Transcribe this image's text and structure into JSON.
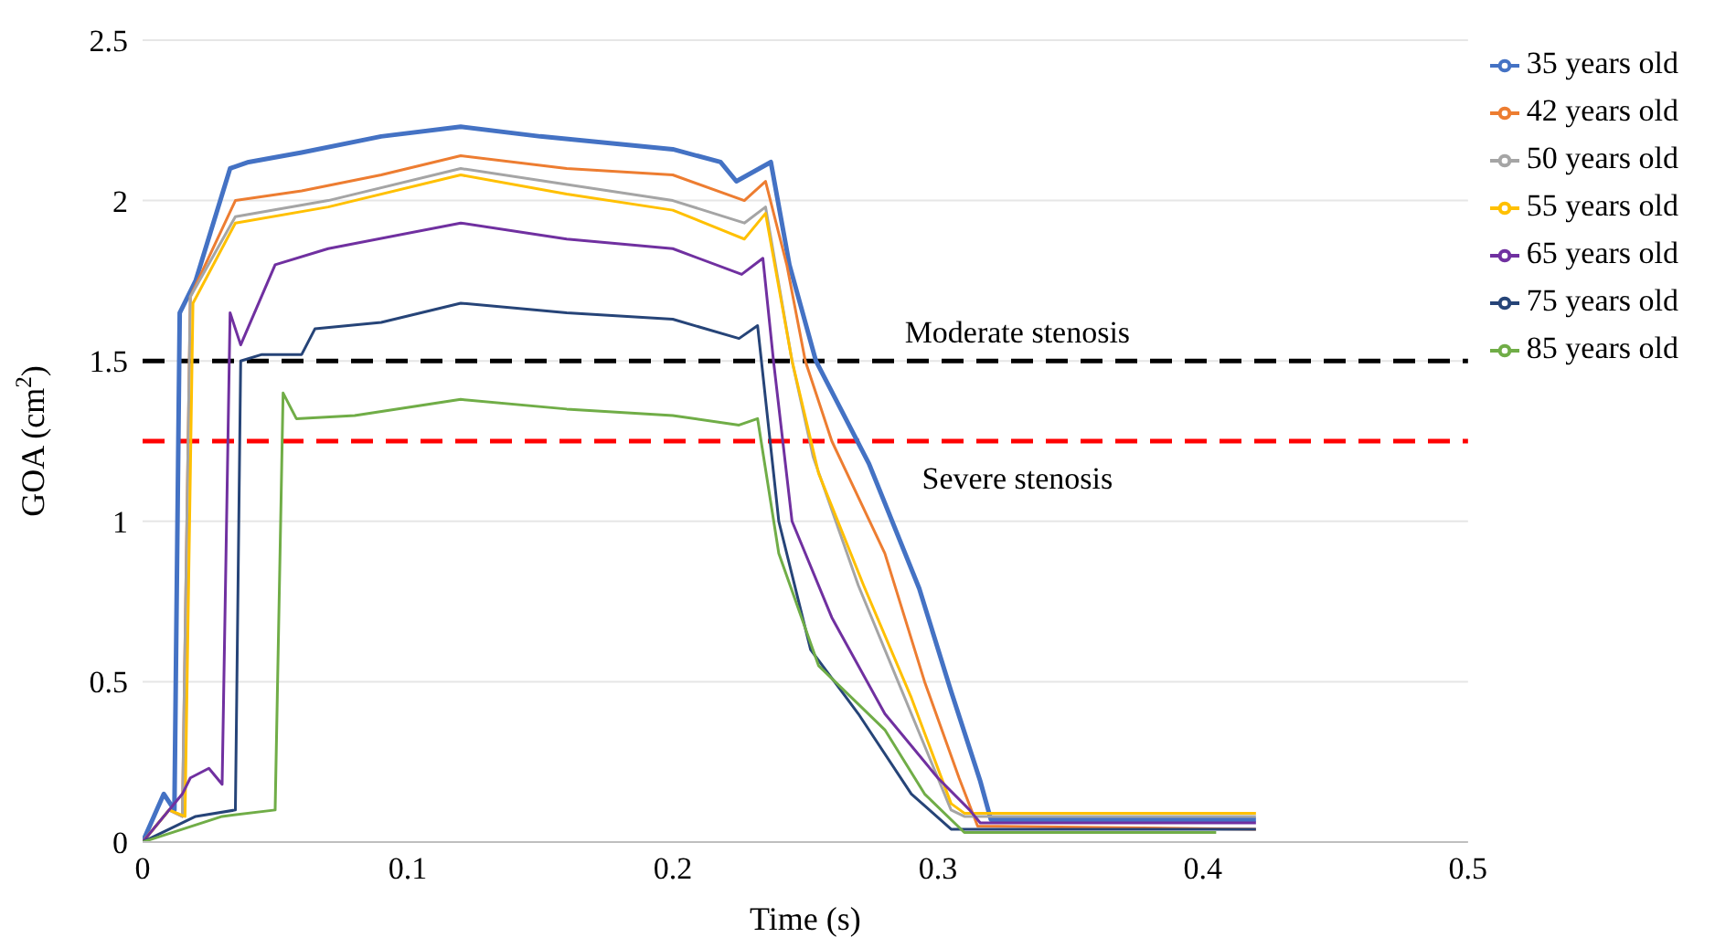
{
  "chart_data": {
    "type": "line",
    "xlabel": "Time (s)",
    "ylabel": "GOA (cm$^{2}$)",
    "xlim": [
      0,
      0.5
    ],
    "xticks": [
      0,
      0.1,
      0.2,
      0.3,
      0.4,
      0.5
    ],
    "ylim": [
      0,
      2.5
    ],
    "yticks": [
      0,
      0.5,
      1,
      1.5,
      2,
      2.5
    ],
    "grid": "y",
    "legend": "top right",
    "marker": "none",
    "line_style": "solid",
    "ref_lines": [
      {
        "axis": "y",
        "value": 1.5,
        "label": "Moderate stenosis",
        "color": "#000000",
        "line_style": "dashed"
      },
      {
        "axis": "y",
        "value": 1.25,
        "label": "Severe stenosis",
        "color": "#ff0000",
        "line_style": "dashed"
      }
    ],
    "series": [
      {
        "name": "35 years old",
        "color": "#4472c4",
        "x": [
          0,
          0.008,
          0.012,
          0.014,
          0.02,
          0.033,
          0.04,
          0.06,
          0.09,
          0.12,
          0.15,
          0.2,
          0.218,
          0.224,
          0.237,
          0.244,
          0.254,
          0.274,
          0.293,
          0.305,
          0.316,
          0.32,
          0.42
        ],
        "values": [
          0,
          0.15,
          0.1,
          1.65,
          1.75,
          2.1,
          2.12,
          2.15,
          2.2,
          2.23,
          2.2,
          2.16,
          2.12,
          2.06,
          2.12,
          1.8,
          1.5,
          1.18,
          0.79,
          0.47,
          0.19,
          0.07,
          0.07
        ]
      },
      {
        "name": "42 years old",
        "color": "#ed7d31",
        "x": [
          0,
          0.01,
          0.015,
          0.018,
          0.035,
          0.06,
          0.09,
          0.12,
          0.16,
          0.2,
          0.227,
          0.235,
          0.243,
          0.25,
          0.26,
          0.28,
          0.295,
          0.308,
          0.315,
          0.42
        ],
        "values": [
          0,
          0.1,
          0.08,
          1.7,
          2.0,
          2.03,
          2.08,
          2.14,
          2.1,
          2.08,
          2.0,
          2.06,
          1.8,
          1.5,
          1.25,
          0.9,
          0.5,
          0.2,
          0.05,
          0.04
        ]
      },
      {
        "name": "50 years old",
        "color": "#a5a5a5",
        "x": [
          0,
          0.01,
          0.015,
          0.018,
          0.035,
          0.07,
          0.12,
          0.16,
          0.2,
          0.227,
          0.235,
          0.245,
          0.253,
          0.27,
          0.29,
          0.305,
          0.31,
          0.42
        ],
        "values": [
          0,
          0.1,
          0.08,
          1.7,
          1.95,
          2.0,
          2.1,
          2.05,
          2.0,
          1.93,
          1.98,
          1.5,
          1.2,
          0.8,
          0.4,
          0.1,
          0.08,
          0.08
        ]
      },
      {
        "name": "55 years old",
        "color": "#ffc000",
        "x": [
          0,
          0.01,
          0.016,
          0.019,
          0.035,
          0.07,
          0.12,
          0.16,
          0.2,
          0.227,
          0.235,
          0.245,
          0.255,
          0.272,
          0.29,
          0.305,
          0.31,
          0.42
        ],
        "values": [
          0,
          0.1,
          0.08,
          1.68,
          1.93,
          1.98,
          2.08,
          2.02,
          1.97,
          1.88,
          1.96,
          1.5,
          1.15,
          0.8,
          0.45,
          0.12,
          0.09,
          0.09
        ]
      },
      {
        "name": "65 years old",
        "color": "#7030a0",
        "x": [
          0,
          0.015,
          0.018,
          0.025,
          0.03,
          0.033,
          0.037,
          0.05,
          0.07,
          0.12,
          0.16,
          0.2,
          0.226,
          0.234,
          0.238,
          0.245,
          0.26,
          0.28,
          0.3,
          0.312,
          0.316,
          0.42
        ],
        "values": [
          0,
          0.15,
          0.2,
          0.23,
          0.18,
          1.65,
          1.55,
          1.8,
          1.85,
          1.93,
          1.88,
          1.85,
          1.77,
          1.82,
          1.5,
          1.0,
          0.7,
          0.4,
          0.2,
          0.1,
          0.06,
          0.06
        ]
      },
      {
        "name": "75 years old",
        "color": "#264478",
        "x": [
          0,
          0.02,
          0.035,
          0.037,
          0.045,
          0.06,
          0.065,
          0.09,
          0.12,
          0.16,
          0.2,
          0.225,
          0.232,
          0.24,
          0.252,
          0.27,
          0.29,
          0.305,
          0.42
        ],
        "values": [
          0,
          0.08,
          0.1,
          1.5,
          1.52,
          1.52,
          1.6,
          1.62,
          1.68,
          1.65,
          1.63,
          1.57,
          1.61,
          1.0,
          0.6,
          0.4,
          0.15,
          0.04,
          0.04
        ]
      },
      {
        "name": "85 years old",
        "color": "#70ad47",
        "x": [
          0,
          0.03,
          0.05,
          0.053,
          0.058,
          0.08,
          0.12,
          0.16,
          0.2,
          0.225,
          0.232,
          0.24,
          0.255,
          0.28,
          0.295,
          0.31,
          0.405
        ],
        "values": [
          0,
          0.08,
          0.1,
          1.4,
          1.32,
          1.33,
          1.38,
          1.35,
          1.33,
          1.3,
          1.32,
          0.9,
          0.55,
          0.35,
          0.15,
          0.03,
          0.03
        ]
      }
    ]
  }
}
